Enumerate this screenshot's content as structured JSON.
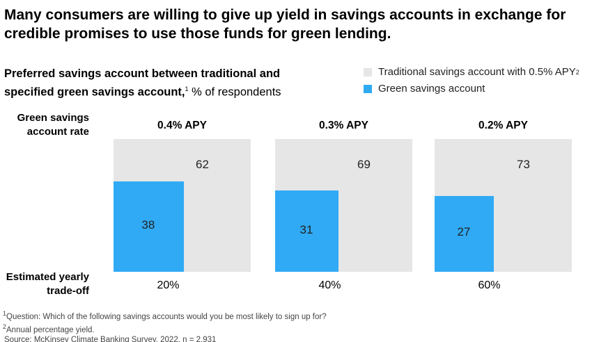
{
  "title": "Many consumers are willing to give up yield in savings accounts in exchange for credible promises to use those funds for green lending.",
  "subtitle": {
    "bold": "Preferred savings account between traditional and specified green savings account,",
    "sup": "1",
    "rest": " % of respondents"
  },
  "row_labels": {
    "rate": "Green savings account rate",
    "tradeoff": "Estimated yearly trade-off"
  },
  "footnotes": [
    "Question: Which of the following savings accounts would you be most likely to sign up for?",
    "Annual percentage yield.",
    "Source: McKinsey Climate Banking Survey, 2022, n = 2,931"
  ],
  "chart_data": {
    "type": "area-square",
    "legend": [
      {
        "label": "Traditional savings account with 0.5% APY",
        "sup": "2",
        "color": "#e6e6e6"
      },
      {
        "label": "Green savings account",
        "color": "#30aaf5"
      }
    ],
    "categories": [
      "0.4% APY",
      "0.3% APY",
      "0.2% APY"
    ],
    "series": [
      {
        "name": "Traditional savings account with 0.5% APY",
        "values": [
          62,
          69,
          73
        ]
      },
      {
        "name": "Green savings account",
        "values": [
          38,
          31,
          27
        ]
      }
    ],
    "tradeoff": [
      "20%",
      "40%",
      "60%"
    ]
  }
}
